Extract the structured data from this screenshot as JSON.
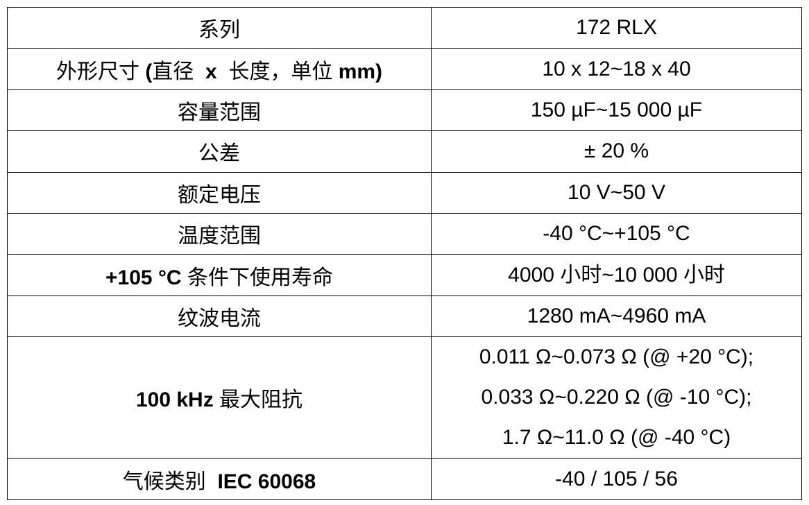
{
  "table": {
    "rows": [
      {
        "label": [
          {
            "text": "系列",
            "bold": false
          }
        ],
        "value": [
          "172 RLX"
        ]
      },
      {
        "label": [
          {
            "text": "外形尺寸 ",
            "bold": false
          },
          {
            "text": "(",
            "bold": true
          },
          {
            "text": "直径 ",
            "bold": false
          },
          {
            "text": " x ",
            "bold": true
          },
          {
            "text": " 长度，单位 ",
            "bold": false
          },
          {
            "text": "mm)",
            "bold": true
          }
        ],
        "value": [
          "10 x 12~18 x 40"
        ]
      },
      {
        "label": [
          {
            "text": "容量范围",
            "bold": false
          }
        ],
        "value": [
          "150 µF~15 000 µF"
        ]
      },
      {
        "label": [
          {
            "text": "公差",
            "bold": false
          }
        ],
        "value": [
          "± 20 %"
        ]
      },
      {
        "label": [
          {
            "text": "额定电压",
            "bold": false
          }
        ],
        "value": [
          "10 V~50 V"
        ]
      },
      {
        "label": [
          {
            "text": "温度范围",
            "bold": false
          }
        ],
        "value": [
          "-40 °C~+105 °C"
        ]
      },
      {
        "label": [
          {
            "text": "+105 °C",
            "bold": true
          },
          {
            "text": " 条件下使用寿命",
            "bold": false
          }
        ],
        "value": [
          "4000 小时~10 000 小时"
        ]
      },
      {
        "label": [
          {
            "text": "纹波电流",
            "bold": false
          }
        ],
        "value": [
          "1280 mA~4960 mA"
        ]
      },
      {
        "label": [
          {
            "text": "100 kHz",
            "bold": true
          },
          {
            "text": " 最大阻抗",
            "bold": false
          }
        ],
        "value": [
          "0.011 Ω~0.073 Ω (@ +20 °C);",
          "0.033 Ω~0.220 Ω (@ -10 °C);",
          "1.7 Ω~11.0 Ω (@ -40 °C)"
        ]
      },
      {
        "label": [
          {
            "text": "气候类别 ",
            "bold": false
          },
          {
            "text": " IEC 60068",
            "bold": true
          }
        ],
        "value": [
          "-40 / 105 / 56"
        ]
      }
    ]
  }
}
